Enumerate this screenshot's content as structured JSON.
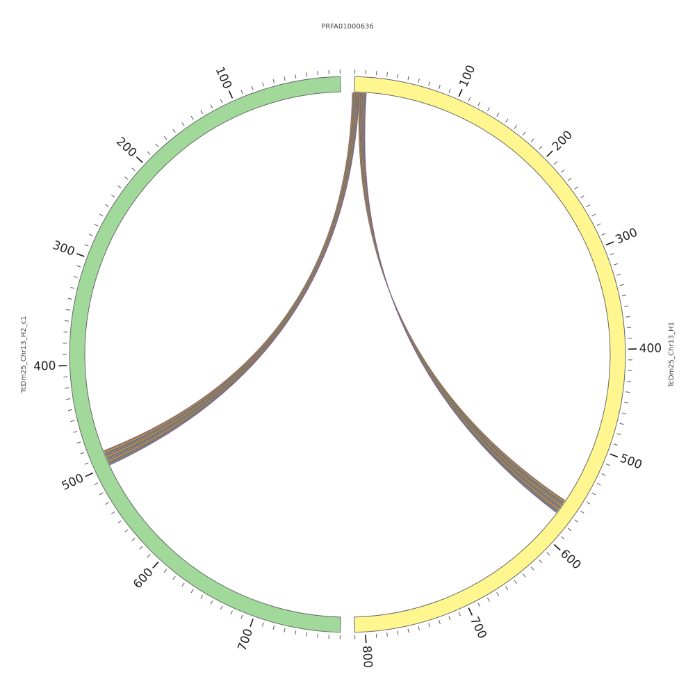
{
  "title": "PRFA01000636",
  "sequences": [
    {
      "name": "TcDm25_Chr13_H1",
      "color": "#fff68f",
      "length": 810,
      "direction": "clockwise",
      "tick_labels": [
        "100",
        "200",
        "300",
        "400",
        "500",
        "600",
        "700",
        "800"
      ]
    },
    {
      "name": "TcDm25_Chr13_H2_c1",
      "color": "#a1d99b",
      "length": 780,
      "direction": "counterclockwise",
      "tick_labels": [
        "100",
        "200",
        "300",
        "400",
        "500",
        "600",
        "700"
      ]
    }
  ],
  "links": [
    {
      "name": "link-h1-start-to-h2-500",
      "from": "TcDm25_Chr13_H1",
      "from_range": [
        -2,
        5
      ],
      "to": "TcDm25_Chr13_H2_c1",
      "to_range": [
        485,
        500
      ]
    },
    {
      "name": "link-h1-start-to-h1-565",
      "from": "TcDm25_Chr13_H1",
      "from_range": [
        5,
        12
      ],
      "to": "TcDm25_Chr13_H1",
      "to_range": [
        560,
        575
      ]
    }
  ],
  "link_palette": [
    "#e41a1c",
    "#377eb8",
    "#4daf4a",
    "#984ea3",
    "#ff7f00",
    "#a6a62b",
    "#a65628",
    "#f781bf",
    "#1b9e77",
    "#222222",
    "#66c2a5",
    "#8da0cb"
  ],
  "stroke_color": "#666666"
}
